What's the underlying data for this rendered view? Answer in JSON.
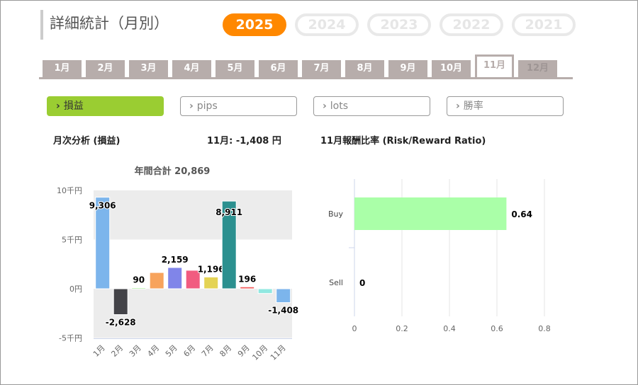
{
  "title": "詳細統計（月別）",
  "years": [
    {
      "label": "2025",
      "active": true
    },
    {
      "label": "2024"
    },
    {
      "label": "2023"
    },
    {
      "label": "2022"
    },
    {
      "label": "2021"
    }
  ],
  "months": [
    "1月",
    "2月",
    "3月",
    "4月",
    "5月",
    "6月",
    "7月",
    "8月",
    "9月",
    "10月",
    "11月",
    "12月"
  ],
  "active_month": "11月",
  "filters": [
    {
      "label": "損益",
      "active": true
    },
    {
      "label": "pips"
    },
    {
      "label": "lots"
    },
    {
      "label": "勝率"
    }
  ],
  "filter_chevron": "›",
  "section": {
    "left_title": "月次分析 (損益)",
    "month_result": "11月:  -1,408 円",
    "right_title": "11月報酬比率 (Risk/Reward Ratio)"
  },
  "chart_data": [
    {
      "type": "bar",
      "title": "年間合計 20,869",
      "categories": [
        "1月",
        "2月",
        "3月",
        "4月",
        "5月",
        "6月",
        "7月",
        "8月",
        "9月",
        "10月",
        "11月"
      ],
      "values": [
        9306,
        -2628,
        90,
        1650,
        2159,
        1877,
        1196,
        8911,
        196,
        -480,
        -1408
      ],
      "labels": [
        "9,306",
        "-2,628",
        "90",
        "",
        "2,159",
        "",
        "1,196",
        "8,911",
        "196",
        "",
        "-1,408"
      ],
      "colors": [
        "#7cb5ec",
        "#434348",
        "#90ed7d",
        "#f7a35c",
        "#8085e9",
        "#f15c80",
        "#e4d354",
        "#2b908f",
        "#f45b5b",
        "#91e8e1",
        "#7cb5ec"
      ],
      "ylim": [
        -5000,
        10000
      ],
      "yticks": [
        {
          "v": 10000,
          "label": "10千円"
        },
        {
          "v": 5000,
          "label": "5千円"
        },
        {
          "v": 0,
          "label": "0円"
        },
        {
          "v": -5000,
          "label": "-5千円"
        }
      ]
    },
    {
      "type": "bar",
      "orientation": "horizontal",
      "categories": [
        "Buy",
        "Sell"
      ],
      "values": [
        0.64,
        0
      ],
      "labels": [
        "0.64",
        "0"
      ],
      "color": "#aaffa8",
      "xlim": [
        0,
        0.8
      ],
      "xticks": [
        "0",
        "0.2",
        "0.4",
        "0.6",
        "0.8"
      ]
    }
  ]
}
